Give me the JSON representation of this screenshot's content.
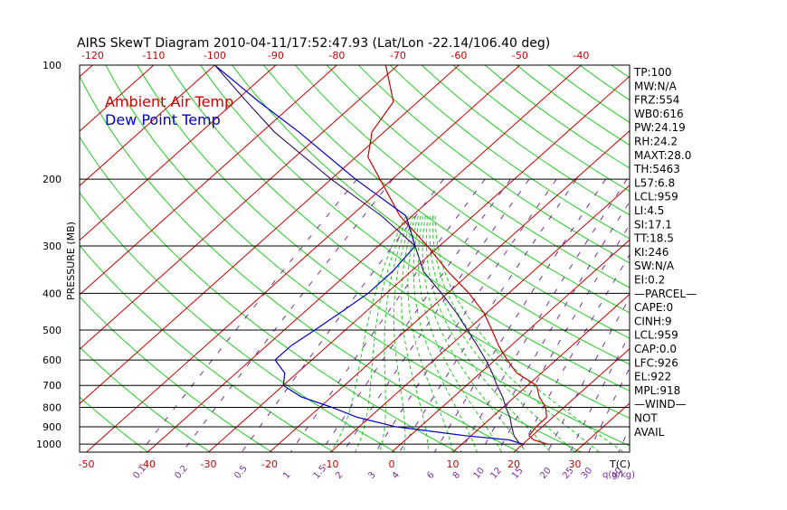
{
  "chart_data": {
    "type": "line",
    "title": "AIRS SkewT Diagram 2010-04-11/17:52:47.93 (Lat/Lon -22.14/106.40 deg)",
    "ylabel": "PRESSURE (MB)",
    "xlabel": "T(C)",
    "mixing_label": "q(g/kg)",
    "pressure_ticks": [
      100,
      200,
      300,
      400,
      500,
      600,
      700,
      800,
      900,
      1000
    ],
    "bottom_temp_ticks": [
      -50,
      -40,
      -30,
      -20,
      -10,
      0,
      10,
      20,
      30
    ],
    "top_temp_ticks": [
      -120,
      -110,
      -100,
      -90,
      -80,
      -70,
      -60,
      -50,
      -40
    ],
    "mixing_ticks": [
      "0.1",
      "0.2",
      "0.5",
      "1",
      "1.5",
      "2",
      "3",
      "4",
      "6",
      "8",
      "10",
      "12",
      "15",
      "20",
      "25",
      "30",
      "40"
    ],
    "legend": [
      {
        "name": "Ambient Air Temp",
        "color": "#cc0000"
      },
      {
        "name": "Dew Point Temp",
        "color": "#0000cc"
      }
    ],
    "series": [
      {
        "name": "Ambient Air Temp",
        "color": "#cc0000",
        "points": [
          {
            "p": 1000,
            "t": 24
          },
          {
            "p": 975,
            "t": 21
          },
          {
            "p": 950,
            "t": 19.5
          },
          {
            "p": 900,
            "t": 19
          },
          {
            "p": 850,
            "t": 19
          },
          {
            "p": 800,
            "t": 17
          },
          {
            "p": 750,
            "t": 14
          },
          {
            "p": 700,
            "t": 11.5
          },
          {
            "p": 650,
            "t": 6
          },
          {
            "p": 600,
            "t": 2
          },
          {
            "p": 550,
            "t": -2
          },
          {
            "p": 500,
            "t": -6
          },
          {
            "p": 450,
            "t": -10.5
          },
          {
            "p": 400,
            "t": -16.5
          },
          {
            "p": 350,
            "t": -24
          },
          {
            "p": 300,
            "t": -32
          },
          {
            "p": 250,
            "t": -42
          },
          {
            "p": 200,
            "t": -52
          },
          {
            "p": 175,
            "t": -58
          },
          {
            "p": 150,
            "t": -62
          },
          {
            "p": 125,
            "t": -64
          },
          {
            "p": 100,
            "t": -72
          }
        ]
      },
      {
        "name": "Dew Point Temp",
        "color": "#0000cc",
        "points": [
          {
            "p": 1000,
            "t": 20
          },
          {
            "p": 975,
            "t": 17
          },
          {
            "p": 950,
            "t": 9
          },
          {
            "p": 900,
            "t": -4
          },
          {
            "p": 850,
            "t": -12
          },
          {
            "p": 800,
            "t": -18
          },
          {
            "p": 750,
            "t": -25
          },
          {
            "p": 700,
            "t": -30
          },
          {
            "p": 650,
            "t": -32
          },
          {
            "p": 600,
            "t": -36
          },
          {
            "p": 550,
            "t": -36
          },
          {
            "p": 500,
            "t": -35
          },
          {
            "p": 450,
            "t": -34
          },
          {
            "p": 400,
            "t": -33
          },
          {
            "p": 350,
            "t": -33
          },
          {
            "p": 300,
            "t": -34
          },
          {
            "p": 250,
            "t": -41
          },
          {
            "p": 200,
            "t": -56
          },
          {
            "p": 150,
            "t": -74
          },
          {
            "p": 125,
            "t": -86
          },
          {
            "p": 100,
            "t": -100
          }
        ]
      },
      {
        "name": "Parcel",
        "color": "#3a1a6a",
        "points": [
          {
            "p": 1000,
            "t": 19.5
          },
          {
            "p": 950,
            "t": 17
          },
          {
            "p": 900,
            "t": 15
          },
          {
            "p": 850,
            "t": 13
          },
          {
            "p": 800,
            "t": 10.5
          },
          {
            "p": 750,
            "t": 8
          },
          {
            "p": 700,
            "t": 5
          },
          {
            "p": 650,
            "t": 2
          },
          {
            "p": 600,
            "t": -1.5
          },
          {
            "p": 550,
            "t": -5.5
          },
          {
            "p": 500,
            "t": -10
          },
          {
            "p": 450,
            "t": -15
          },
          {
            "p": 400,
            "t": -21
          },
          {
            "p": 350,
            "t": -28
          },
          {
            "p": 300,
            "t": -34
          },
          {
            "p": 250,
            "t": -45
          },
          {
            "p": 200,
            "t": -60
          },
          {
            "p": 150,
            "t": -78
          },
          {
            "p": 125,
            "t": -88
          },
          {
            "p": 100,
            "t": -100
          }
        ]
      }
    ],
    "side_panel": [
      "TP:100",
      "MW:N/A",
      "FRZ:554",
      "WB0:616",
      "PW:24.19",
      "RH:24.2",
      "MAXT:28.0",
      "TH:5463",
      "L57:6.8",
      "LCL:959",
      "LI:4.5",
      "SI:17.1",
      "TT:18.5",
      "KI:246",
      "SW:N/A",
      "EI:0.2",
      "—PARCEL—",
      "CAPE:0",
      "CINH:9",
      "LCL:959",
      "CAP:0.0",
      "LFC:926",
      "EL:922",
      "MPL:918",
      "—WIND—",
      "NOT",
      "AVAIL"
    ],
    "grid": true
  }
}
